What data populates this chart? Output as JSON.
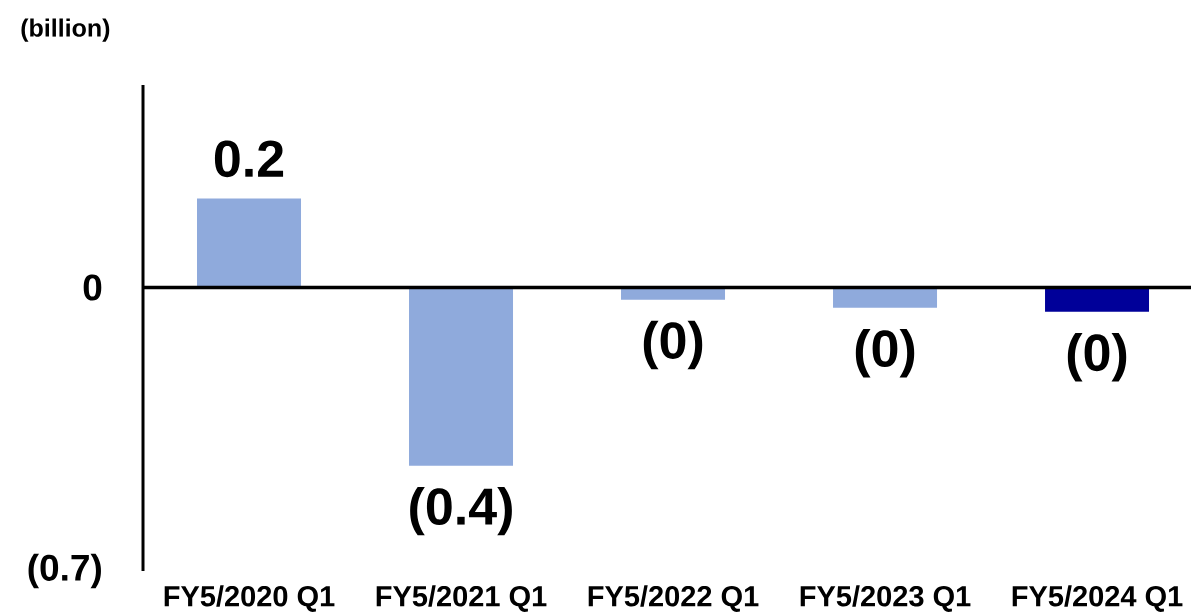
{
  "chart_data": {
    "type": "bar",
    "ylabel": "(billion)",
    "categories": [
      "FY5/2020 Q1",
      "FY5/2021 Q1",
      "FY5/2022 Q1",
      "FY5/2023 Q1",
      "FY5/2024 Q1"
    ],
    "values": [
      0.22,
      -0.44,
      -0.03,
      -0.05,
      -0.06
    ],
    "colors": [
      "#8faadc",
      "#8faadc",
      "#8faadc",
      "#8faadc",
      "#000099"
    ],
    "value_labels": [
      "0.2",
      "(0.4)",
      "(0)",
      "(0)",
      "(0)"
    ],
    "ylim": [
      -0.7,
      0.5
    ],
    "yticks": [
      {
        "value": -0.7,
        "label": "(0.7)"
      },
      0
    ]
  }
}
